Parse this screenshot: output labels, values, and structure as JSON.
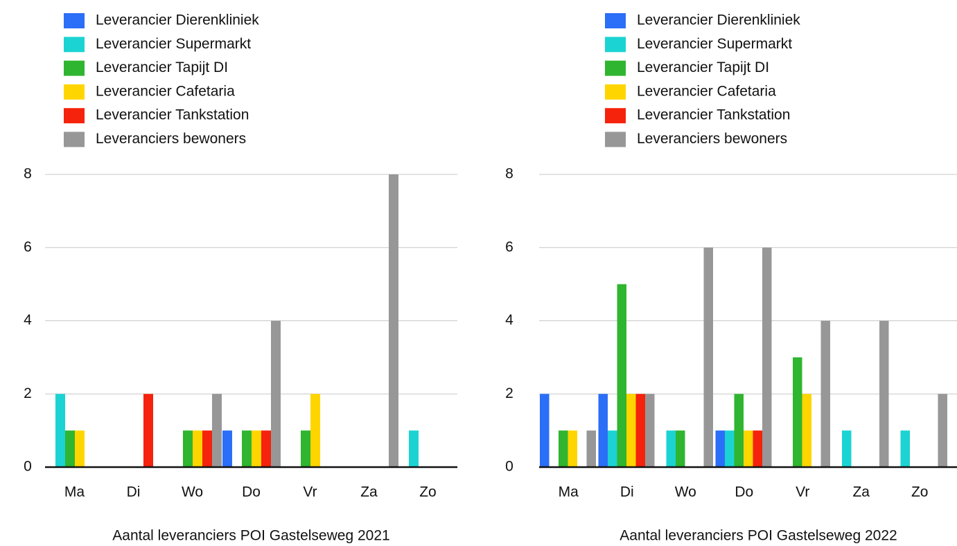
{
  "chart_data": [
    {
      "type": "bar",
      "title": "Aantal leveranciers POI Gastelseweg 2021",
      "categories": [
        "Ma",
        "Di",
        "Wo",
        "Do",
        "Vr",
        "Za",
        "Zo"
      ],
      "series": [
        {
          "name": "Leverancier Dierenkliniek",
          "color": "#2b6ef7",
          "values": [
            0,
            0,
            0,
            1,
            0,
            0,
            0
          ]
        },
        {
          "name": "Leverancier Supermarkt",
          "color": "#1cd3d3",
          "values": [
            2,
            0,
            0,
            0,
            0,
            0,
            1
          ]
        },
        {
          "name": "Leverancier Tapijt DI",
          "color": "#2fb52f",
          "values": [
            1,
            0,
            1,
            1,
            1,
            0,
            0
          ]
        },
        {
          "name": "Leverancier Cafetaria",
          "color": "#ffd500",
          "values": [
            1,
            0,
            1,
            1,
            2,
            0,
            0
          ]
        },
        {
          "name": "Leverancier Tankstation",
          "color": "#f5220c",
          "values": [
            0,
            2,
            1,
            1,
            0,
            0,
            0
          ]
        },
        {
          "name": "Leveranciers bewoners",
          "color": "#979797",
          "values": [
            0,
            0,
            2,
            4,
            0,
            8,
            0
          ]
        }
      ],
      "ylim": [
        0,
        8
      ],
      "yticks": [
        0,
        2,
        4,
        6,
        8
      ],
      "grid": true,
      "legend": "top"
    },
    {
      "type": "bar",
      "title": "Aantal leveranciers POI Gastelseweg 2022",
      "categories": [
        "Ma",
        "Di",
        "Wo",
        "Do",
        "Vr",
        "Za",
        "Zo"
      ],
      "series": [
        {
          "name": "Leverancier Dierenkliniek",
          "color": "#2b6ef7",
          "values": [
            2,
            2,
            0,
            1,
            0,
            0,
            0
          ]
        },
        {
          "name": "Leverancier Supermarkt",
          "color": "#1cd3d3",
          "values": [
            0,
            1,
            1,
            1,
            0,
            1,
            1
          ]
        },
        {
          "name": "Leverancier Tapijt DI",
          "color": "#2fb52f",
          "values": [
            1,
            5,
            1,
            2,
            3,
            0,
            0
          ]
        },
        {
          "name": "Leverancier Cafetaria",
          "color": "#ffd500",
          "values": [
            1,
            2,
            0,
            1,
            2,
            0,
            0
          ]
        },
        {
          "name": "Leverancier Tankstation",
          "color": "#f5220c",
          "values": [
            0,
            2,
            0,
            1,
            0,
            0,
            0
          ]
        },
        {
          "name": "Leveranciers bewoners",
          "color": "#979797",
          "values": [
            1,
            2,
            6,
            6,
            4,
            4,
            2
          ]
        }
      ],
      "ylim": [
        0,
        8
      ],
      "yticks": [
        0,
        2,
        4,
        6,
        8
      ],
      "grid": true,
      "legend": "top"
    }
  ]
}
